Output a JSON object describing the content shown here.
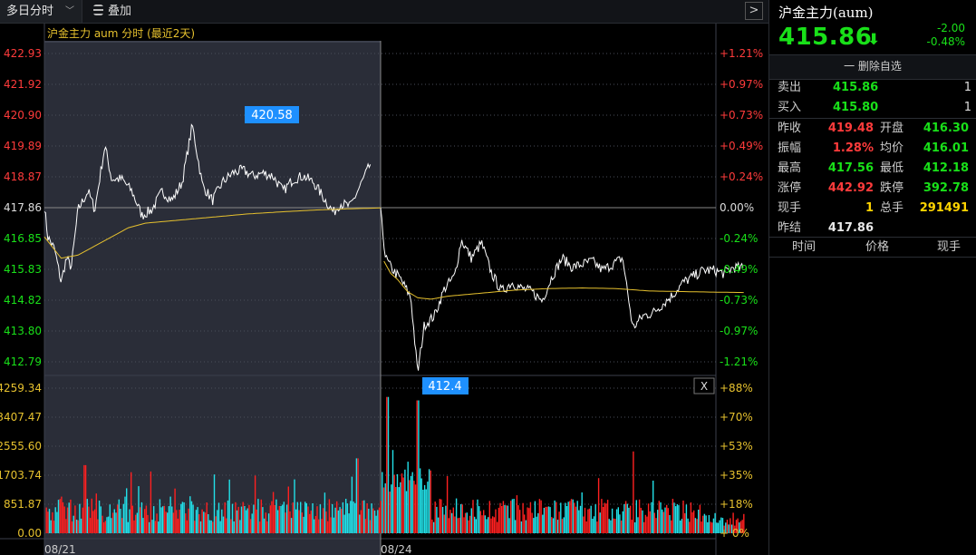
{
  "toolbar": {
    "mode": "多日分时",
    "overlay": "叠加",
    "expand": ">"
  },
  "chart": {
    "title": "沪金主力 aum 分时 (最近2天)",
    "price_labels": [
      "422.93",
      "421.92",
      "420.90",
      "419.89",
      "418.87",
      "417.86",
      "416.85",
      "415.83",
      "414.82",
      "413.80",
      "412.79"
    ],
    "pct_labels": [
      "+1.21%",
      "+0.97%",
      "+0.73%",
      "+0.49%",
      "+0.24%",
      "0.00%",
      "-0.24%",
      "-0.49%",
      "-0.73%",
      "-0.97%",
      "-1.21%"
    ],
    "vol_labels": [
      "4259.34",
      "3407.47",
      "2555.60",
      "1703.74",
      "851.87",
      "0.00"
    ],
    "vol_pct_labels": [
      "+88%",
      "+70%",
      "+53%",
      "+35%",
      "+18%",
      "+ 0%"
    ],
    "dates": [
      "08/21",
      "08/24"
    ],
    "high_tag": "420.58",
    "low_tag": "412.4",
    "close_btn": "X"
  },
  "chart_data": {
    "type": "line",
    "ylim": [
      412.79,
      422.93
    ],
    "prev_close": 417.86,
    "days": [
      "08/21",
      "08/24"
    ],
    "price_anchors": [
      {
        "t": 0.0,
        "v": 417.9
      },
      {
        "t": 0.01,
        "v": 416.9
      },
      {
        "t": 0.03,
        "v": 416.5
      },
      {
        "t": 0.05,
        "v": 415.4
      },
      {
        "t": 0.065,
        "v": 416.2
      },
      {
        "t": 0.08,
        "v": 415.9
      },
      {
        "t": 0.1,
        "v": 417.8
      },
      {
        "t": 0.13,
        "v": 418.4
      },
      {
        "t": 0.15,
        "v": 417.8
      },
      {
        "t": 0.18,
        "v": 419.9
      },
      {
        "t": 0.2,
        "v": 418.8
      },
      {
        "t": 0.23,
        "v": 418.8
      },
      {
        "t": 0.26,
        "v": 418.4
      },
      {
        "t": 0.29,
        "v": 417.6
      },
      {
        "t": 0.32,
        "v": 417.8
      },
      {
        "t": 0.35,
        "v": 418.4
      },
      {
        "t": 0.38,
        "v": 418.1
      },
      {
        "t": 0.41,
        "v": 418.7
      },
      {
        "t": 0.44,
        "v": 420.58
      },
      {
        "t": 0.47,
        "v": 418.6
      },
      {
        "t": 0.5,
        "v": 418.1
      },
      {
        "t": 0.53,
        "v": 418.7
      },
      {
        "t": 0.56,
        "v": 419.0
      },
      {
        "t": 0.59,
        "v": 419.1
      },
      {
        "t": 0.62,
        "v": 418.9
      },
      {
        "t": 0.65,
        "v": 419.0
      },
      {
        "t": 0.68,
        "v": 418.9
      },
      {
        "t": 0.71,
        "v": 418.4
      },
      {
        "t": 0.74,
        "v": 418.8
      },
      {
        "t": 0.77,
        "v": 418.9
      },
      {
        "t": 0.8,
        "v": 418.7
      },
      {
        "t": 0.83,
        "v": 418.2
      },
      {
        "t": 0.86,
        "v": 417.7
      },
      {
        "t": 0.88,
        "v": 418.0
      },
      {
        "t": 0.91,
        "v": 417.9
      },
      {
        "t": 0.94,
        "v": 418.6
      },
      {
        "t": 0.97,
        "v": 419.3
      },
      {
        "t": 1.0,
        "v": 417.7
      },
      {
        "t": 1.015,
        "v": 416.2
      },
      {
        "t": 1.03,
        "v": 415.9
      },
      {
        "t": 1.06,
        "v": 415.5
      },
      {
        "t": 1.09,
        "v": 414.9
      },
      {
        "t": 1.11,
        "v": 412.4
      },
      {
        "t": 1.13,
        "v": 414.0
      },
      {
        "t": 1.16,
        "v": 414.3
      },
      {
        "t": 1.19,
        "v": 415.2
      },
      {
        "t": 1.22,
        "v": 415.6
      },
      {
        "t": 1.24,
        "v": 416.8
      },
      {
        "t": 1.27,
        "v": 416.2
      },
      {
        "t": 1.3,
        "v": 416.7
      },
      {
        "t": 1.33,
        "v": 415.7
      },
      {
        "t": 1.36,
        "v": 415.1
      },
      {
        "t": 1.39,
        "v": 415.4
      },
      {
        "t": 1.42,
        "v": 415.2
      },
      {
        "t": 1.45,
        "v": 415.1
      },
      {
        "t": 1.48,
        "v": 414.8
      },
      {
        "t": 1.51,
        "v": 415.6
      },
      {
        "t": 1.54,
        "v": 416.2
      },
      {
        "t": 1.57,
        "v": 415.9
      },
      {
        "t": 1.6,
        "v": 416.0
      },
      {
        "t": 1.63,
        "v": 416.1
      },
      {
        "t": 1.66,
        "v": 415.8
      },
      {
        "t": 1.69,
        "v": 416.0
      },
      {
        "t": 1.72,
        "v": 416.2
      },
      {
        "t": 1.75,
        "v": 413.9
      },
      {
        "t": 1.78,
        "v": 414.3
      },
      {
        "t": 1.81,
        "v": 414.4
      },
      {
        "t": 1.84,
        "v": 414.7
      },
      {
        "t": 1.87,
        "v": 415.0
      },
      {
        "t": 1.9,
        "v": 415.4
      },
      {
        "t": 1.93,
        "v": 415.6
      },
      {
        "t": 1.96,
        "v": 415.8
      },
      {
        "t": 1.99,
        "v": 415.8
      },
      {
        "t": 2.02,
        "v": 415.7
      },
      {
        "t": 2.05,
        "v": 415.9
      },
      {
        "t": 2.08,
        "v": 415.86
      }
    ],
    "avg_anchors": [
      {
        "t": 0.0,
        "v": 416.9
      },
      {
        "t": 0.05,
        "v": 416.2
      },
      {
        "t": 0.1,
        "v": 416.3
      },
      {
        "t": 0.15,
        "v": 416.6
      },
      {
        "t": 0.2,
        "v": 416.9
      },
      {
        "t": 0.25,
        "v": 417.2
      },
      {
        "t": 0.3,
        "v": 417.35
      },
      {
        "t": 0.4,
        "v": 417.45
      },
      {
        "t": 0.5,
        "v": 417.55
      },
      {
        "t": 0.6,
        "v": 417.65
      },
      {
        "t": 0.7,
        "v": 417.72
      },
      {
        "t": 0.8,
        "v": 417.78
      },
      {
        "t": 0.9,
        "v": 417.82
      },
      {
        "t": 1.0,
        "v": 417.85
      },
      {
        "t": 1.01,
        "v": 416.1
      },
      {
        "t": 1.03,
        "v": 415.7
      },
      {
        "t": 1.05,
        "v": 415.5
      },
      {
        "t": 1.08,
        "v": 415.1
      },
      {
        "t": 1.11,
        "v": 414.9
      },
      {
        "t": 1.15,
        "v": 414.85
      },
      {
        "t": 1.2,
        "v": 414.95
      },
      {
        "t": 1.3,
        "v": 415.05
      },
      {
        "t": 1.4,
        "v": 415.15
      },
      {
        "t": 1.5,
        "v": 415.2
      },
      {
        "t": 1.6,
        "v": 415.22
      },
      {
        "t": 1.7,
        "v": 415.2
      },
      {
        "t": 1.8,
        "v": 415.12
      },
      {
        "t": 1.9,
        "v": 415.1
      },
      {
        "t": 2.0,
        "v": 415.08
      },
      {
        "t": 2.08,
        "v": 415.07
      }
    ],
    "volume_max": 4259.34,
    "volume_peaks": [
      {
        "t": 1.02,
        "v": 4000
      },
      {
        "t": 1.11,
        "v": 3900
      },
      {
        "t": 1.75,
        "v": 2400
      },
      {
        "t": 0.93,
        "v": 2200
      },
      {
        "t": 0.12,
        "v": 2000
      }
    ]
  },
  "sidebar": {
    "name": "沪金主力(aum)",
    "price": "415.86",
    "arrow": "⬇",
    "change": "-2.00",
    "change_pct": "-0.48%",
    "delete": "一 删除自选",
    "sell": {
      "label": "卖出",
      "price": "415.86",
      "vol": "1"
    },
    "buy": {
      "label": "买入",
      "price": "415.80",
      "vol": "1"
    },
    "stats": [
      {
        "label": "昨收",
        "value": "419.48",
        "color": "red"
      },
      {
        "label": "开盘",
        "value": "416.30",
        "color": "green"
      },
      {
        "label": "振幅",
        "value": "1.28%",
        "color": "red"
      },
      {
        "label": "均价",
        "value": "416.01",
        "color": "green"
      },
      {
        "label": "最高",
        "value": "417.56",
        "color": "green"
      },
      {
        "label": "最低",
        "value": "412.18",
        "color": "green"
      },
      {
        "label": "涨停",
        "value": "442.92",
        "color": "red"
      },
      {
        "label": "跌停",
        "value": "392.78",
        "color": "green"
      },
      {
        "label": "现手",
        "value": "1",
        "color": "yellow"
      },
      {
        "label": "总手",
        "value": "291491",
        "color": "yellow"
      },
      {
        "label": "昨结",
        "value": "417.86",
        "color": "white"
      }
    ],
    "tick_headers": [
      "时间",
      "价格",
      "现手"
    ]
  },
  "colors": {
    "up": "#ff3b3b",
    "down": "#19e019",
    "avg": "#e6c12e",
    "price_line": "#ffffff",
    "vol_up": "#ff2020",
    "vol_down": "#22e0e8",
    "tag": "#1e90ff"
  }
}
